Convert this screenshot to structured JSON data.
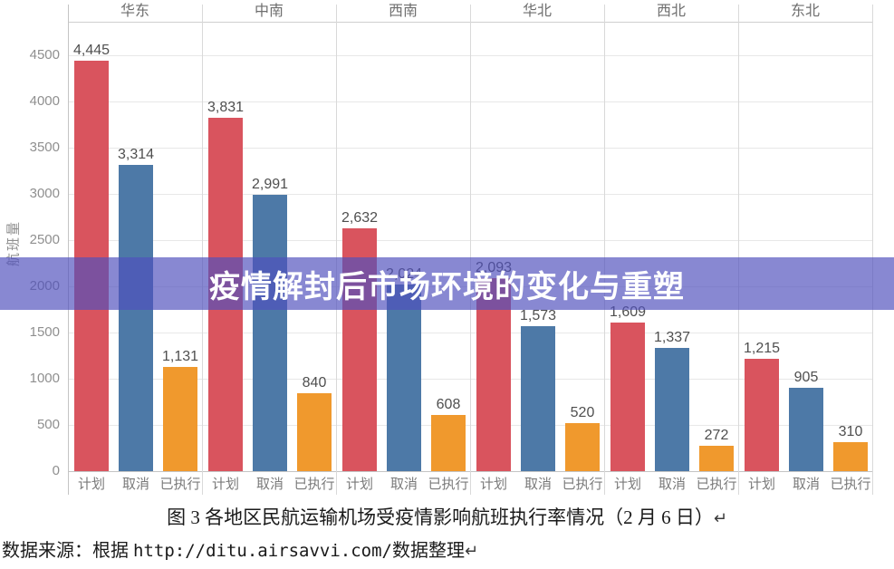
{
  "banner": {
    "text": "疫情解封后市场环境的变化与重塑",
    "bg_color": "#5050bc",
    "text_color": "#ffffff"
  },
  "chart_data": {
    "type": "bar",
    "title": "",
    "y_axis_title": "航班量",
    "ylabel": "航班量",
    "xlabel": "",
    "ylim": [
      0,
      4870
    ],
    "y_ticks": [
      4500,
      4000,
      3500,
      3000,
      2500,
      2000,
      1500,
      1000,
      500,
      0
    ],
    "grid": "horizontal",
    "legend_position": "none",
    "categories": [
      "计划",
      "取消",
      "已执行"
    ],
    "series_colors": [
      "#d9545e",
      "#4d79a7",
      "#f0992d"
    ],
    "regions": [
      {
        "name": "华东",
        "values": [
          4445,
          3314,
          1131
        ]
      },
      {
        "name": "中南",
        "values": [
          3831,
          2991,
          840
        ]
      },
      {
        "name": "西南",
        "values": [
          2632,
          2024,
          608
        ]
      },
      {
        "name": "华北",
        "values": [
          2093,
          1573,
          520
        ]
      },
      {
        "name": "西北",
        "values": [
          1609,
          1337,
          272
        ]
      },
      {
        "name": "东北",
        "values": [
          1215,
          905,
          310
        ]
      }
    ]
  },
  "caption": {
    "text": "图 3 各地区民航运输机场受疫情影响航班执行率情况（2 月 6 日）",
    "return_mark": "↵"
  },
  "source": {
    "prefix": "数据来源：根据 ",
    "url": "http://ditu.airsavvi.com/",
    "suffix": "数据整理",
    "return_mark": "↵"
  }
}
